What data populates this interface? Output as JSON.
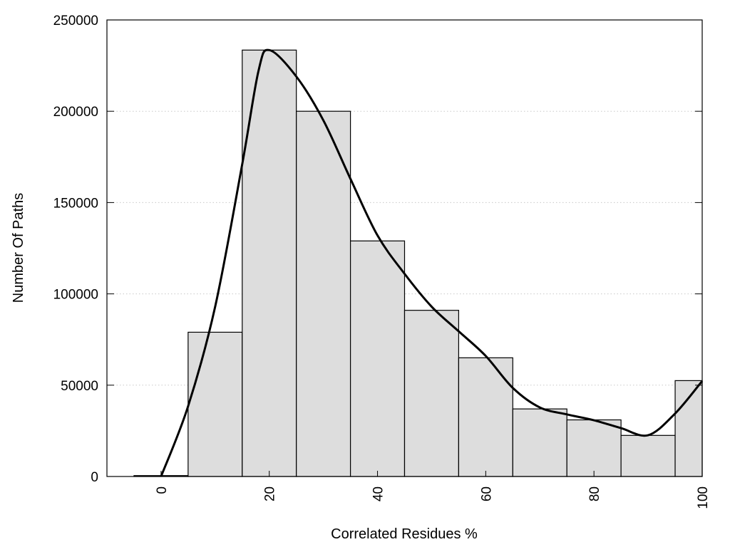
{
  "chart_data": {
    "type": "bar",
    "xlabel": "Correlated Residues %",
    "ylabel": "Number Of Paths",
    "xlim": [
      -10,
      100
    ],
    "ylim": [
      0,
      250000
    ],
    "grid": "horizontal dotted",
    "bar_color": "#dddddd",
    "line_color": "#000000",
    "xticks": [
      0,
      20,
      40,
      60,
      80,
      100
    ],
    "yticks": [
      0,
      50000,
      100000,
      150000,
      200000,
      250000
    ],
    "bin_width": 10,
    "bars": {
      "x": [
        0,
        10,
        20,
        30,
        40,
        50,
        60,
        70,
        80,
        90,
        100
      ],
      "values": [
        500,
        79000,
        233500,
        200000,
        129000,
        91000,
        65000,
        37000,
        31000,
        22500,
        52500
      ]
    },
    "curve": {
      "x": [
        0,
        5,
        10,
        15,
        18,
        20,
        25,
        30,
        35,
        40,
        45,
        50,
        55,
        60,
        65,
        70,
        75,
        80,
        85,
        90,
        95,
        100
      ],
      "values": [
        0,
        38500,
        93000,
        171000,
        222000,
        233500,
        219000,
        195000,
        163000,
        132000,
        111000,
        93000,
        79500,
        66000,
        48500,
        37800,
        34000,
        30800,
        26500,
        22600,
        34500,
        52300
      ]
    }
  }
}
